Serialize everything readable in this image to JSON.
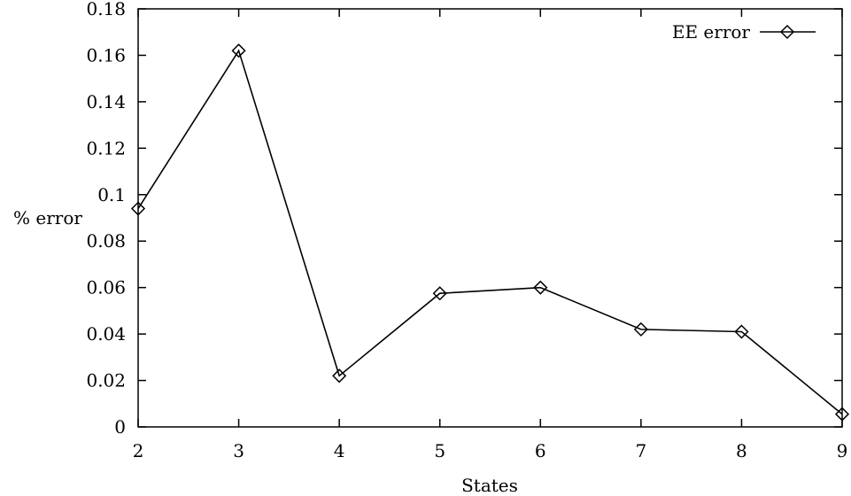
{
  "chart_data": {
    "type": "line",
    "xlabel": "States",
    "ylabel": "% error",
    "xlim": [
      2,
      9
    ],
    "ylim": [
      0,
      0.18
    ],
    "xticks": [
      2,
      3,
      4,
      5,
      6,
      7,
      8,
      9
    ],
    "yticks": [
      0,
      0.02,
      0.04,
      0.06,
      0.08,
      0.1,
      0.12,
      0.14,
      0.16,
      0.18
    ],
    "grid": false,
    "legend_position": "top-right",
    "series": [
      {
        "name": "EE error",
        "marker": "diamond",
        "color": "#000000",
        "x": [
          2,
          3,
          4,
          5,
          6,
          7,
          8,
          9
        ],
        "y": [
          0.094,
          0.162,
          0.022,
          0.0575,
          0.06,
          0.042,
          0.041,
          0.0055
        ]
      }
    ]
  }
}
